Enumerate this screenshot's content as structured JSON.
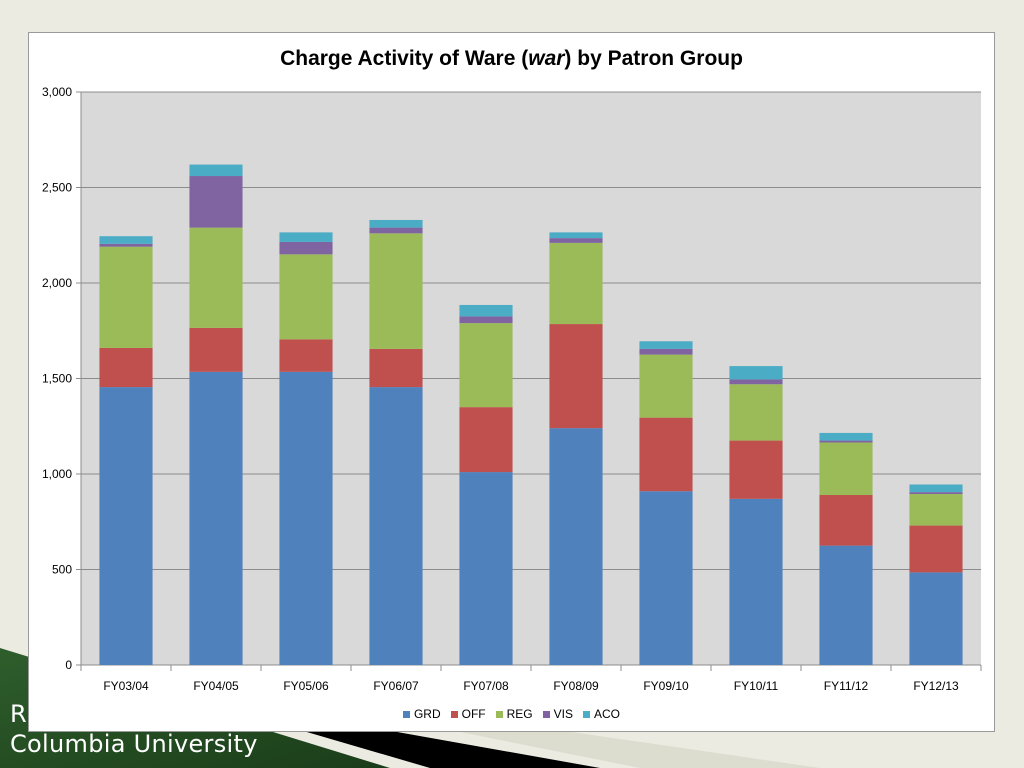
{
  "footer": {
    "initial": "R",
    "university": "Columbia University"
  },
  "chart_data": {
    "type": "bar",
    "stacked": true,
    "title_parts": [
      "Charge Activity of Ware (",
      "war",
      ") by Patron Group"
    ],
    "xlabel": "",
    "ylabel": "",
    "ylim": [
      0,
      3000
    ],
    "yticks": [
      0,
      500,
      1000,
      1500,
      2000,
      2500,
      3000
    ],
    "ytick_labels": [
      "0",
      "500",
      "1,000",
      "1,500",
      "2,000",
      "2,500",
      "3,000"
    ],
    "grid": true,
    "legend_position": "bottom",
    "categories": [
      "FY03/04",
      "FY04/05",
      "FY05/06",
      "FY06/07",
      "FY07/08",
      "FY08/09",
      "FY09/10",
      "FY10/11",
      "FY11/12",
      "FY12/13"
    ],
    "series": [
      {
        "name": "GRD",
        "color": "#4f81bd",
        "values": [
          1455,
          1535,
          1535,
          1455,
          1010,
          1240,
          910,
          870,
          625,
          485
        ]
      },
      {
        "name": "OFF",
        "color": "#c0504d",
        "values": [
          205,
          230,
          170,
          200,
          340,
          545,
          385,
          305,
          265,
          245
        ]
      },
      {
        "name": "REG",
        "color": "#9bbb59",
        "values": [
          530,
          525,
          445,
          605,
          440,
          425,
          330,
          295,
          275,
          165
        ]
      },
      {
        "name": "VIS",
        "color": "#8064a2",
        "values": [
          15,
          270,
          65,
          30,
          35,
          25,
          30,
          25,
          10,
          10
        ]
      },
      {
        "name": "ACO",
        "color": "#4bacc6",
        "values": [
          40,
          60,
          50,
          40,
          60,
          30,
          40,
          70,
          40,
          40
        ]
      }
    ],
    "plot_background": "#d9d9d9"
  }
}
